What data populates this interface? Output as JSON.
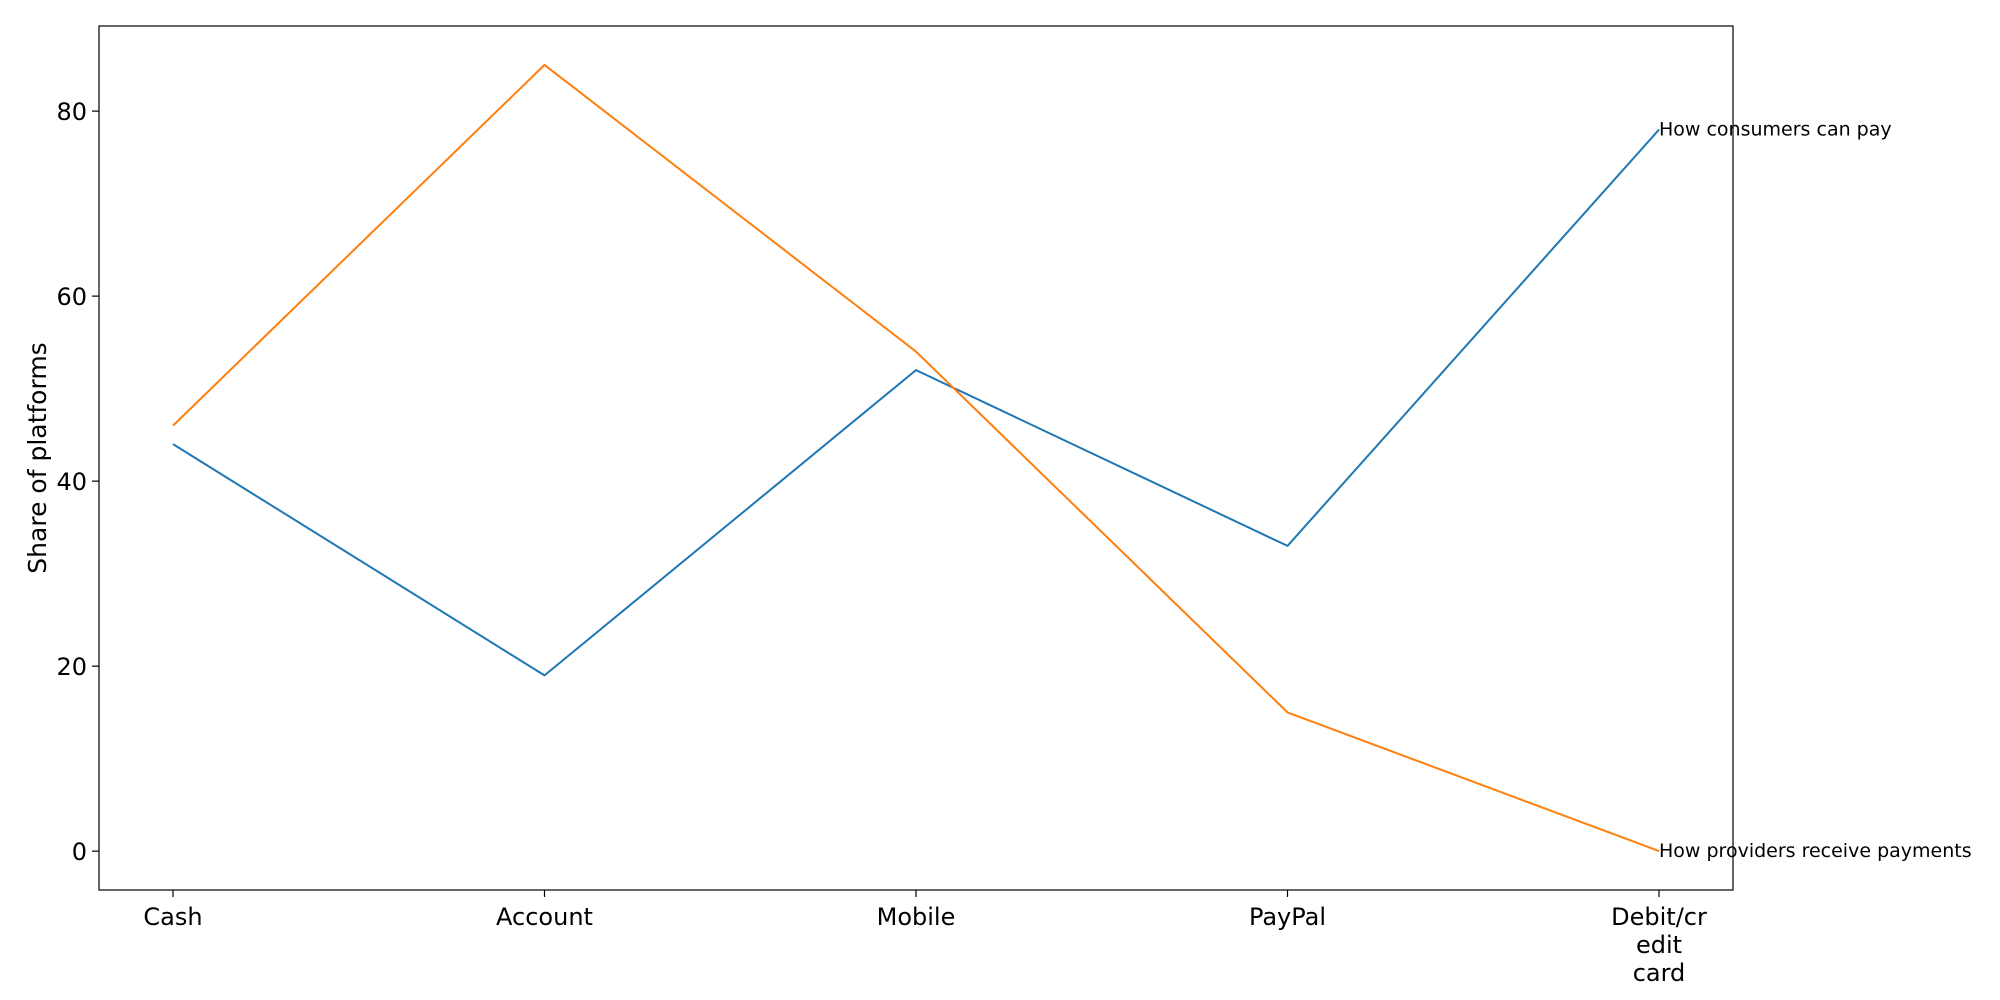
{
  "chart_data": {
    "type": "line",
    "title": "",
    "xlabel": "",
    "ylabel": "Share of platforms",
    "categories": [
      "Cash",
      "Account",
      "Mobile",
      "PayPal",
      "Debit/credit card"
    ],
    "category_tick_lines": [
      [
        "Cash"
      ],
      [
        "Account"
      ],
      [
        "Mobile"
      ],
      [
        "PayPal"
      ],
      [
        "Debit/cr",
        "edit",
        "card"
      ]
    ],
    "ylim": [
      -4.2,
      89.2
    ],
    "yticks": [
      0,
      20,
      40,
      60,
      80
    ],
    "grid": false,
    "legend": "none",
    "series": [
      {
        "name": "How consumers can pay",
        "color": "#1f77b4",
        "values": [
          44,
          19,
          52,
          33,
          78
        ]
      },
      {
        "name": "How providers receive payments",
        "color": "#ff7f0e",
        "values": [
          46,
          85,
          54,
          15,
          0
        ]
      }
    ]
  }
}
